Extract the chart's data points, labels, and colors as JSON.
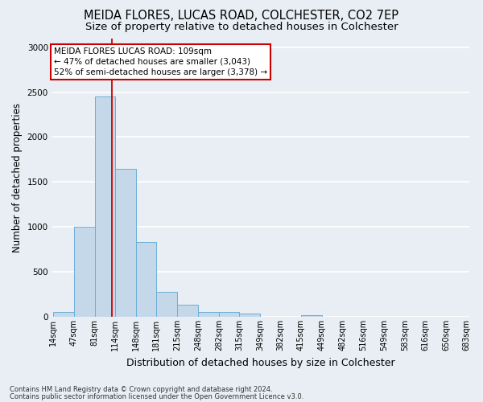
{
  "title": "MEIDA FLORES, LUCAS ROAD, COLCHESTER, CO2 7EP",
  "subtitle": "Size of property relative to detached houses in Colchester",
  "xlabel": "Distribution of detached houses by size in Colchester",
  "ylabel": "Number of detached properties",
  "footnote1": "Contains HM Land Registry data © Crown copyright and database right 2024.",
  "footnote2": "Contains public sector information licensed under the Open Government Licence v3.0.",
  "bin_edges": [
    14,
    47,
    81,
    114,
    148,
    181,
    215,
    248,
    282,
    315,
    349,
    382,
    415,
    449,
    482,
    516,
    549,
    583,
    616,
    650,
    683
  ],
  "bar_heights": [
    50,
    1000,
    2450,
    1650,
    830,
    280,
    130,
    50,
    50,
    35,
    0,
    0,
    20,
    0,
    0,
    0,
    0,
    0,
    0,
    0
  ],
  "bar_color": "#c5d8ea",
  "bar_edgecolor": "#6aaed6",
  "tick_labels": [
    "14sqm",
    "47sqm",
    "81sqm",
    "114sqm",
    "148sqm",
    "181sqm",
    "215sqm",
    "248sqm",
    "282sqm",
    "315sqm",
    "349sqm",
    "382sqm",
    "415sqm",
    "449sqm",
    "482sqm",
    "516sqm",
    "549sqm",
    "583sqm",
    "616sqm",
    "650sqm",
    "683sqm"
  ],
  "ylim": [
    0,
    3100
  ],
  "vline_x": 109,
  "vline_color": "#cc0000",
  "annotation_text": "MEIDA FLORES LUCAS ROAD: 109sqm\n← 47% of detached houses are smaller (3,043)\n52% of semi-detached houses are larger (3,378) →",
  "annotation_box_color": "white",
  "annotation_box_edgecolor": "#cc0000",
  "background_color": "#e8eef4",
  "grid_color": "white",
  "title_fontsize": 10.5,
  "subtitle_fontsize": 9.5,
  "tick_fontsize": 7,
  "ylabel_fontsize": 8.5,
  "xlabel_fontsize": 9,
  "annot_fontsize": 7.5
}
